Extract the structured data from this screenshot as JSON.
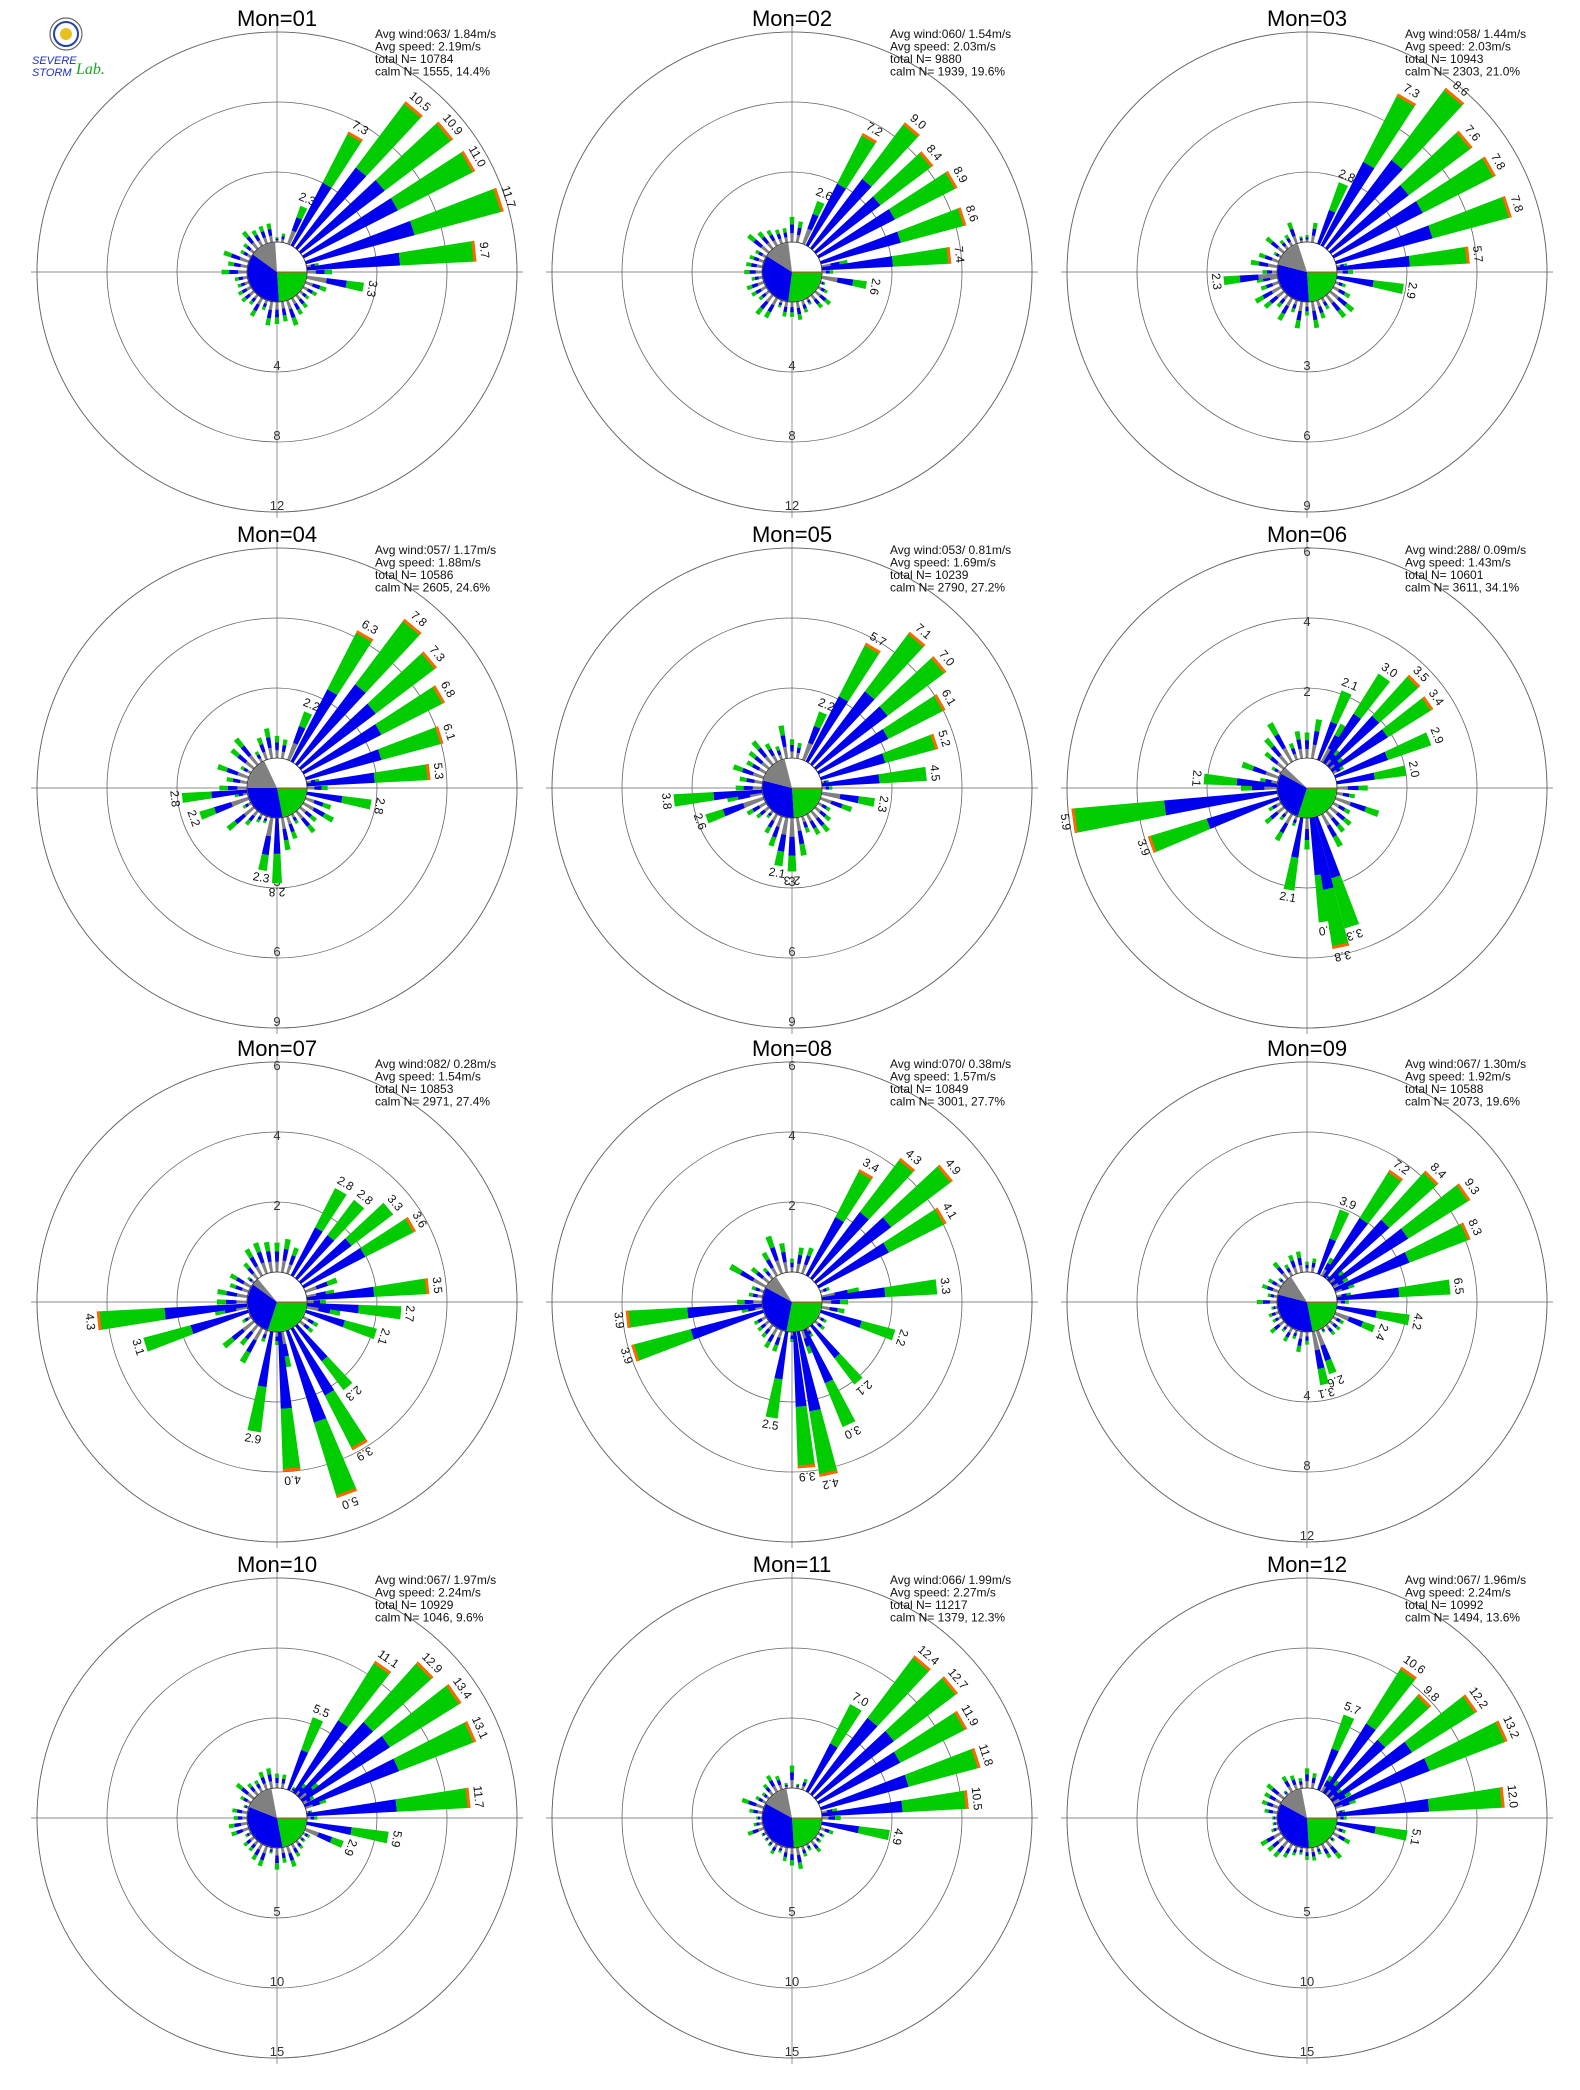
{
  "logo": {
    "name": "severe-storm-lab-logo",
    "text_line1": "SEVERE",
    "text_line2": "STORM",
    "text_suffix": "Lab."
  },
  "colors": {
    "lt_band": "#808080",
    "mid_band": "#0000ee",
    "hi_band": "#00cc00",
    "top_band": "#ff6600",
    "ring": "#666666",
    "axis": "#666666"
  },
  "chart_data": [
    {
      "type": "wind-rose",
      "title": "Mon=01",
      "stats": [
        "Avg wind:063/ 1.84m/s",
        "Avg speed: 2.19m/s",
        "total N=       10784",
        "calm N=    1555,  14.4%"
      ],
      "ring_labels": [
        "4",
        "8",
        "12"
      ],
      "rmax": 12,
      "pie": {
        "calm_pct": 14.4,
        "g": 0.14,
        "b": 0.36,
        "gr": 0.24
      },
      "labeled": [
        {
          "dir": 22.5,
          "val": 2.3
        },
        {
          "dir": 30,
          "val": 7.3
        },
        {
          "dir": 40,
          "val": 10.5
        },
        {
          "dir": 50,
          "val": 10.9
        },
        {
          "dir": 60,
          "val": 11.0
        },
        {
          "dir": 72,
          "val": 11.7
        },
        {
          "dir": 84,
          "val": 9.7
        },
        {
          "dir": 100,
          "val": 3.3
        }
      ],
      "bg_scale": 0.35
    },
    {
      "type": "wind-rose",
      "title": "Mon=02",
      "stats": [
        "Avg wind:060/ 1.54m/s",
        "Avg speed: 2.03m/s",
        "total N=         9880",
        "calm N=    1939,  19.6%"
      ],
      "ring_labels": [
        "4",
        "8",
        "12"
      ],
      "rmax": 12,
      "pie": {
        "calm_pct": 19.6,
        "g": 0.14,
        "b": 0.32,
        "gr": 0.27
      },
      "labeled": [
        {
          "dir": 22.5,
          "val": 2.6
        },
        {
          "dir": 30,
          "val": 7.2
        },
        {
          "dir": 40,
          "val": 9.0
        },
        {
          "dir": 50,
          "val": 8.4
        },
        {
          "dir": 60,
          "val": 8.9
        },
        {
          "dir": 72,
          "val": 8.6
        },
        {
          "dir": 84,
          "val": 7.4
        },
        {
          "dir": 100,
          "val": 2.6
        }
      ],
      "bg_scale": 0.35
    },
    {
      "type": "wind-rose",
      "title": "Mon=03",
      "stats": [
        "Avg wind:058/ 1.44m/s",
        "Avg speed: 2.03m/s",
        "total N=       10943",
        "calm N=    2303,  21.0%"
      ],
      "ring_labels": [
        "3",
        "6",
        "9"
      ],
      "rmax": 9,
      "pie": {
        "calm_pct": 21.0,
        "g": 0.16,
        "b": 0.3,
        "gr": 0.24
      },
      "labeled": [
        {
          "dir": 22.5,
          "val": 2.8
        },
        {
          "dir": 30,
          "val": 7.3
        },
        {
          "dir": 40,
          "val": 8.6
        },
        {
          "dir": 50,
          "val": 7.6
        },
        {
          "dir": 60,
          "val": 7.8
        },
        {
          "dir": 72,
          "val": 7.8
        },
        {
          "dir": 84,
          "val": 5.7
        },
        {
          "dir": 100,
          "val": 2.9
        },
        {
          "dir": 264,
          "val": 2.3
        }
      ],
      "bg_scale": 0.4
    },
    {
      "type": "wind-rose",
      "title": "Mon=04",
      "stats": [
        "Avg wind:057/ 1.17m/s",
        "Avg speed: 1.88m/s",
        "total N=       10586",
        "calm N=    2605,  24.6%"
      ],
      "ring_labels": [
        "3",
        "6",
        "9"
      ],
      "rmax": 9,
      "pie": {
        "calm_pct": 24.6,
        "g": 0.18,
        "b": 0.28,
        "gr": 0.22
      },
      "labeled": [
        {
          "dir": 22.5,
          "val": 2.2
        },
        {
          "dir": 30,
          "val": 6.3
        },
        {
          "dir": 40,
          "val": 7.8
        },
        {
          "dir": 50,
          "val": 7.3
        },
        {
          "dir": 60,
          "val": 6.8
        },
        {
          "dir": 72,
          "val": 6.1
        },
        {
          "dir": 84,
          "val": 5.3
        },
        {
          "dir": 100,
          "val": 2.8
        },
        {
          "dir": 264,
          "val": 2.8
        },
        {
          "dir": 250,
          "val": 2.2
        },
        {
          "dir": 190,
          "val": 2.3
        },
        {
          "dir": 180,
          "val": 2.8
        }
      ],
      "bg_scale": 0.45
    },
    {
      "type": "wind-rose",
      "title": "Mon=05",
      "stats": [
        "Avg wind:053/ 0.81m/s",
        "Avg speed: 1.69m/s",
        "total N=       10239",
        "calm N=    2790,  27.2%"
      ],
      "ring_labels": [
        "3",
        "6",
        "9"
      ],
      "rmax": 9,
      "pie": {
        "calm_pct": 27.2,
        "g": 0.17,
        "b": 0.3,
        "gr": 0.24
      },
      "labeled": [
        {
          "dir": 22.5,
          "val": 2.2
        },
        {
          "dir": 30,
          "val": 5.7
        },
        {
          "dir": 40,
          "val": 7.1
        },
        {
          "dir": 50,
          "val": 7.0
        },
        {
          "dir": 60,
          "val": 6.1
        },
        {
          "dir": 72,
          "val": 5.2
        },
        {
          "dir": 84,
          "val": 4.5
        },
        {
          "dir": 100,
          "val": 2.3
        },
        {
          "dir": 264,
          "val": 3.8
        },
        {
          "dir": 250,
          "val": 2.6
        },
        {
          "dir": 190,
          "val": 2.1
        },
        {
          "dir": 180,
          "val": 2.3
        }
      ],
      "bg_scale": 0.5
    },
    {
      "type": "wind-rose",
      "title": "Mon=06",
      "stats": [
        "Avg wind:288/ 0.09m/s",
        "Avg speed: 1.43m/s",
        "total N=       10601",
        "calm N=    3611,  34.1%"
      ],
      "ring_labels": [
        "2",
        "4",
        "6"
      ],
      "rmax": 6,
      "ring_axis": "up",
      "pie": {
        "calm_pct": 34.1,
        "g": 0.04,
        "b": 0.28,
        "gr": 0.3
      },
      "labeled": [
        {
          "dir": 22.5,
          "val": 2.1
        },
        {
          "dir": 35,
          "val": 3.0
        },
        {
          "dir": 45,
          "val": 3.5
        },
        {
          "dir": 55,
          "val": 3.4
        },
        {
          "dir": 68,
          "val": 2.9
        },
        {
          "dir": 80,
          "val": 2.0
        },
        {
          "dir": 262,
          "val": 5.9
        },
        {
          "dir": 250,
          "val": 3.9
        },
        {
          "dir": 275,
          "val": 2.1
        },
        {
          "dir": 190,
          "val": 2.1
        },
        {
          "dir": 172,
          "val": 3.0
        },
        {
          "dir": 162,
          "val": 3.3
        },
        {
          "dir": 168,
          "val": 3.8
        }
      ],
      "bg_scale": 0.6
    },
    {
      "type": "wind-rose",
      "title": "Mon=07",
      "stats": [
        "Avg wind:082/ 0.28m/s",
        "Avg speed: 1.54m/s",
        "total N=       10853",
        "calm N=    2971,  27.4%"
      ],
      "ring_labels": [
        "2",
        "4",
        "6"
      ],
      "rmax": 6,
      "ring_axis": "up",
      "pie": {
        "calm_pct": 27.4,
        "g": 0.04,
        "b": 0.3,
        "gr": 0.3
      },
      "labeled": [
        {
          "dir": 30,
          "val": 2.8
        },
        {
          "dir": 40,
          "val": 2.8
        },
        {
          "dir": 50,
          "val": 3.3
        },
        {
          "dir": 60,
          "val": 3.6
        },
        {
          "dir": 84,
          "val": 3.5
        },
        {
          "dir": 95,
          "val": 2.7
        },
        {
          "dir": 108,
          "val": 2.1
        },
        {
          "dir": 264,
          "val": 4.3
        },
        {
          "dir": 252,
          "val": 3.1
        },
        {
          "dir": 190,
          "val": 2.9
        },
        {
          "dir": 175,
          "val": 4.0
        },
        {
          "dir": 160,
          "val": 5.0
        },
        {
          "dir": 150,
          "val": 3.9
        },
        {
          "dir": 140,
          "val": 2.3
        }
      ],
      "bg_scale": 0.55
    },
    {
      "type": "wind-rose",
      "title": "Mon=08",
      "stats": [
        "Avg wind:070/ 0.38m/s",
        "Avg speed: 1.57m/s",
        "total N=       10849",
        "calm N=    3001,  27.7%"
      ],
      "ring_labels": [
        "2",
        "4",
        "6"
      ],
      "rmax": 6,
      "ring_axis": "up",
      "pie": {
        "calm_pct": 27.7,
        "g": 0.08,
        "b": 0.3,
        "gr": 0.28
      },
      "labeled": [
        {
          "dir": 30,
          "val": 3.4
        },
        {
          "dir": 40,
          "val": 4.3
        },
        {
          "dir": 50,
          "val": 4.9
        },
        {
          "dir": 60,
          "val": 4.1
        },
        {
          "dir": 84,
          "val": 3.3
        },
        {
          "dir": 108,
          "val": 2.2
        },
        {
          "dir": 264,
          "val": 3.9
        },
        {
          "dir": 252,
          "val": 3.9
        },
        {
          "dir": 190,
          "val": 2.5
        },
        {
          "dir": 175,
          "val": 3.9
        },
        {
          "dir": 168,
          "val": 4.2
        },
        {
          "dir": 155,
          "val": 3.0
        },
        {
          "dir": 140,
          "val": 2.1
        }
      ],
      "bg_scale": 0.55
    },
    {
      "type": "wind-rose",
      "title": "Mon=09",
      "stats": [
        "Avg wind:067/ 1.30m/s",
        "Avg speed: 1.92m/s",
        "total N=       10588",
        "calm N=    2073,  19.6%"
      ],
      "ring_labels": [
        "4",
        "8",
        "12"
      ],
      "rmax": 12,
      "pie": {
        "calm_pct": 19.6,
        "g": 0.12,
        "b": 0.32,
        "gr": 0.22
      },
      "labeled": [
        {
          "dir": 22.5,
          "val": 3.9
        },
        {
          "dir": 35,
          "val": 7.2
        },
        {
          "dir": 45,
          "val": 8.4
        },
        {
          "dir": 55,
          "val": 9.3
        },
        {
          "dir": 66,
          "val": 8.3
        },
        {
          "dir": 84,
          "val": 6.5
        },
        {
          "dir": 100,
          "val": 4.2
        },
        {
          "dir": 112,
          "val": 2.4
        },
        {
          "dir": 160,
          "val": 2.6
        },
        {
          "dir": 168,
          "val": 3.1
        }
      ],
      "bg_scale": 0.3
    },
    {
      "type": "wind-rose",
      "title": "Mon=10",
      "stats": [
        "Avg wind:067/ 1.97m/s",
        "Avg speed: 2.24m/s",
        "total N=       10929",
        "calm N=    1046,    9.6%"
      ],
      "ring_labels": [
        "5",
        "10",
        "15"
      ],
      "rmax": 15,
      "pie": {
        "calm_pct": 9.6,
        "g": 0.16,
        "b": 0.34,
        "gr": 0.22
      },
      "labeled": [
        {
          "dir": 22.5,
          "val": 5.5
        },
        {
          "dir": 35,
          "val": 11.1
        },
        {
          "dir": 45,
          "val": 12.9
        },
        {
          "dir": 55,
          "val": 13.4
        },
        {
          "dir": 66,
          "val": 13.1
        },
        {
          "dir": 84,
          "val": 11.7
        },
        {
          "dir": 100,
          "val": 5.9
        },
        {
          "dir": 112,
          "val": 2.9
        }
      ],
      "bg_scale": 0.3
    },
    {
      "type": "wind-rose",
      "title": "Mon=11",
      "stats": [
        "Avg wind:066/ 1.99m/s",
        "Avg speed: 2.27m/s",
        "total N=       11217",
        "calm N=    1379,  12.3%"
      ],
      "ring_labels": [
        "5",
        "10",
        "15"
      ],
      "rmax": 15,
      "pie": {
        "calm_pct": 12.3,
        "g": 0.14,
        "b": 0.34,
        "gr": 0.24
      },
      "labeled": [
        {
          "dir": 30,
          "val": 7.0
        },
        {
          "dir": 40,
          "val": 12.4
        },
        {
          "dir": 50,
          "val": 12.7
        },
        {
          "dir": 60,
          "val": 11.9
        },
        {
          "dir": 72,
          "val": 11.8
        },
        {
          "dir": 84,
          "val": 10.5
        },
        {
          "dir": 100,
          "val": 4.9
        }
      ],
      "bg_scale": 0.3
    },
    {
      "type": "wind-rose",
      "title": "Mon=12",
      "stats": [
        "Avg wind:067/ 1.96m/s",
        "Avg speed: 2.24m/s",
        "total N=       10992",
        "calm N=    1494,  13.6%"
      ],
      "ring_labels": [
        "5",
        "10",
        "15"
      ],
      "rmax": 15,
      "pie": {
        "calm_pct": 13.6,
        "g": 0.14,
        "b": 0.34,
        "gr": 0.24
      },
      "labeled": [
        {
          "dir": 22.5,
          "val": 5.7
        },
        {
          "dir": 35,
          "val": 10.6
        },
        {
          "dir": 45,
          "val": 9.8
        },
        {
          "dir": 55,
          "val": 12.2
        },
        {
          "dir": 66,
          "val": 13.2
        },
        {
          "dir": 84,
          "val": 12.0
        },
        {
          "dir": 100,
          "val": 5.1
        }
      ],
      "bg_scale": 0.3
    }
  ]
}
